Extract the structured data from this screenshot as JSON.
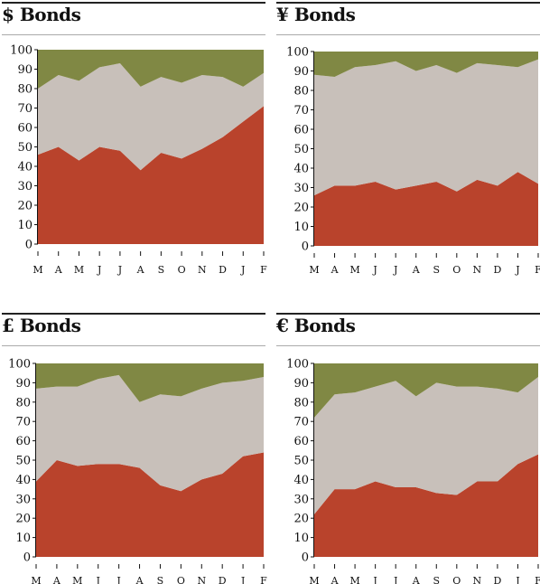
{
  "colors": {
    "bottom": "#b9432c",
    "middle": "#c8c0ba",
    "top": "#808844",
    "axis": "#111111"
  },
  "chart_data": [
    {
      "type": "area",
      "title": "$ Bonds",
      "stacked": true,
      "categories": [
        "M",
        "A",
        "M",
        "J",
        "J",
        "A",
        "S",
        "O",
        "N",
        "D",
        "J",
        "F"
      ],
      "ylim": [
        0,
        100
      ],
      "yticks": [
        0,
        10,
        20,
        30,
        40,
        50,
        60,
        70,
        80,
        90,
        100
      ],
      "series": [
        {
          "values": [
            46,
            50,
            43,
            50,
            48,
            38,
            47,
            44,
            49,
            55,
            63,
            71
          ]
        },
        {
          "values": [
            34,
            37,
            41,
            41,
            45,
            43,
            39,
            39,
            38,
            31,
            18,
            17
          ]
        },
        {
          "values": [
            20,
            13,
            16,
            9,
            7,
            19,
            14,
            17,
            13,
            14,
            19,
            12
          ]
        }
      ]
    },
    {
      "type": "area",
      "title": "¥ Bonds",
      "stacked": true,
      "categories": [
        "M",
        "A",
        "M",
        "J",
        "J",
        "A",
        "S",
        "O",
        "N",
        "D",
        "J",
        "F"
      ],
      "ylim": [
        0,
        100
      ],
      "yticks": [
        0,
        10,
        20,
        30,
        40,
        50,
        60,
        70,
        80,
        90,
        100
      ],
      "series": [
        {
          "values": [
            26,
            31,
            31,
            33,
            29,
            31,
            33,
            28,
            34,
            31,
            38,
            32
          ]
        },
        {
          "values": [
            62,
            56,
            61,
            60,
            66,
            59,
            60,
            61,
            60,
            62,
            54,
            64
          ]
        },
        {
          "values": [
            12,
            13,
            8,
            7,
            5,
            10,
            7,
            11,
            6,
            7,
            8,
            4
          ]
        }
      ]
    },
    {
      "type": "area",
      "title": "£ Bonds",
      "stacked": true,
      "categories": [
        "M",
        "A",
        "M",
        "J",
        "J",
        "A",
        "S",
        "O",
        "N",
        "D",
        "J",
        "F"
      ],
      "ylim": [
        0,
        100
      ],
      "yticks": [
        0,
        10,
        20,
        30,
        40,
        50,
        60,
        70,
        80,
        90,
        100
      ],
      "series": [
        {
          "values": [
            39,
            50,
            47,
            48,
            48,
            46,
            37,
            34,
            40,
            43,
            52,
            54
          ]
        },
        {
          "values": [
            48,
            38,
            41,
            44,
            46,
            34,
            47,
            49,
            47,
            47,
            39,
            39
          ]
        },
        {
          "values": [
            13,
            12,
            12,
            8,
            6,
            20,
            16,
            17,
            13,
            10,
            9,
            7
          ]
        }
      ]
    },
    {
      "type": "area",
      "title": "€ Bonds",
      "stacked": true,
      "categories": [
        "M",
        "A",
        "M",
        "J",
        "J",
        "A",
        "S",
        "O",
        "N",
        "D",
        "J",
        "F"
      ],
      "ylim": [
        0,
        100
      ],
      "yticks": [
        0,
        10,
        20,
        30,
        40,
        50,
        60,
        70,
        80,
        90,
        100
      ],
      "series": [
        {
          "values": [
            22,
            35,
            35,
            39,
            36,
            36,
            33,
            32,
            39,
            39,
            48,
            53
          ]
        },
        {
          "values": [
            50,
            49,
            50,
            49,
            55,
            47,
            57,
            56,
            49,
            48,
            37,
            40
          ]
        },
        {
          "values": [
            28,
            16,
            15,
            12,
            9,
            17,
            10,
            12,
            12,
            13,
            15,
            7
          ]
        }
      ]
    }
  ]
}
